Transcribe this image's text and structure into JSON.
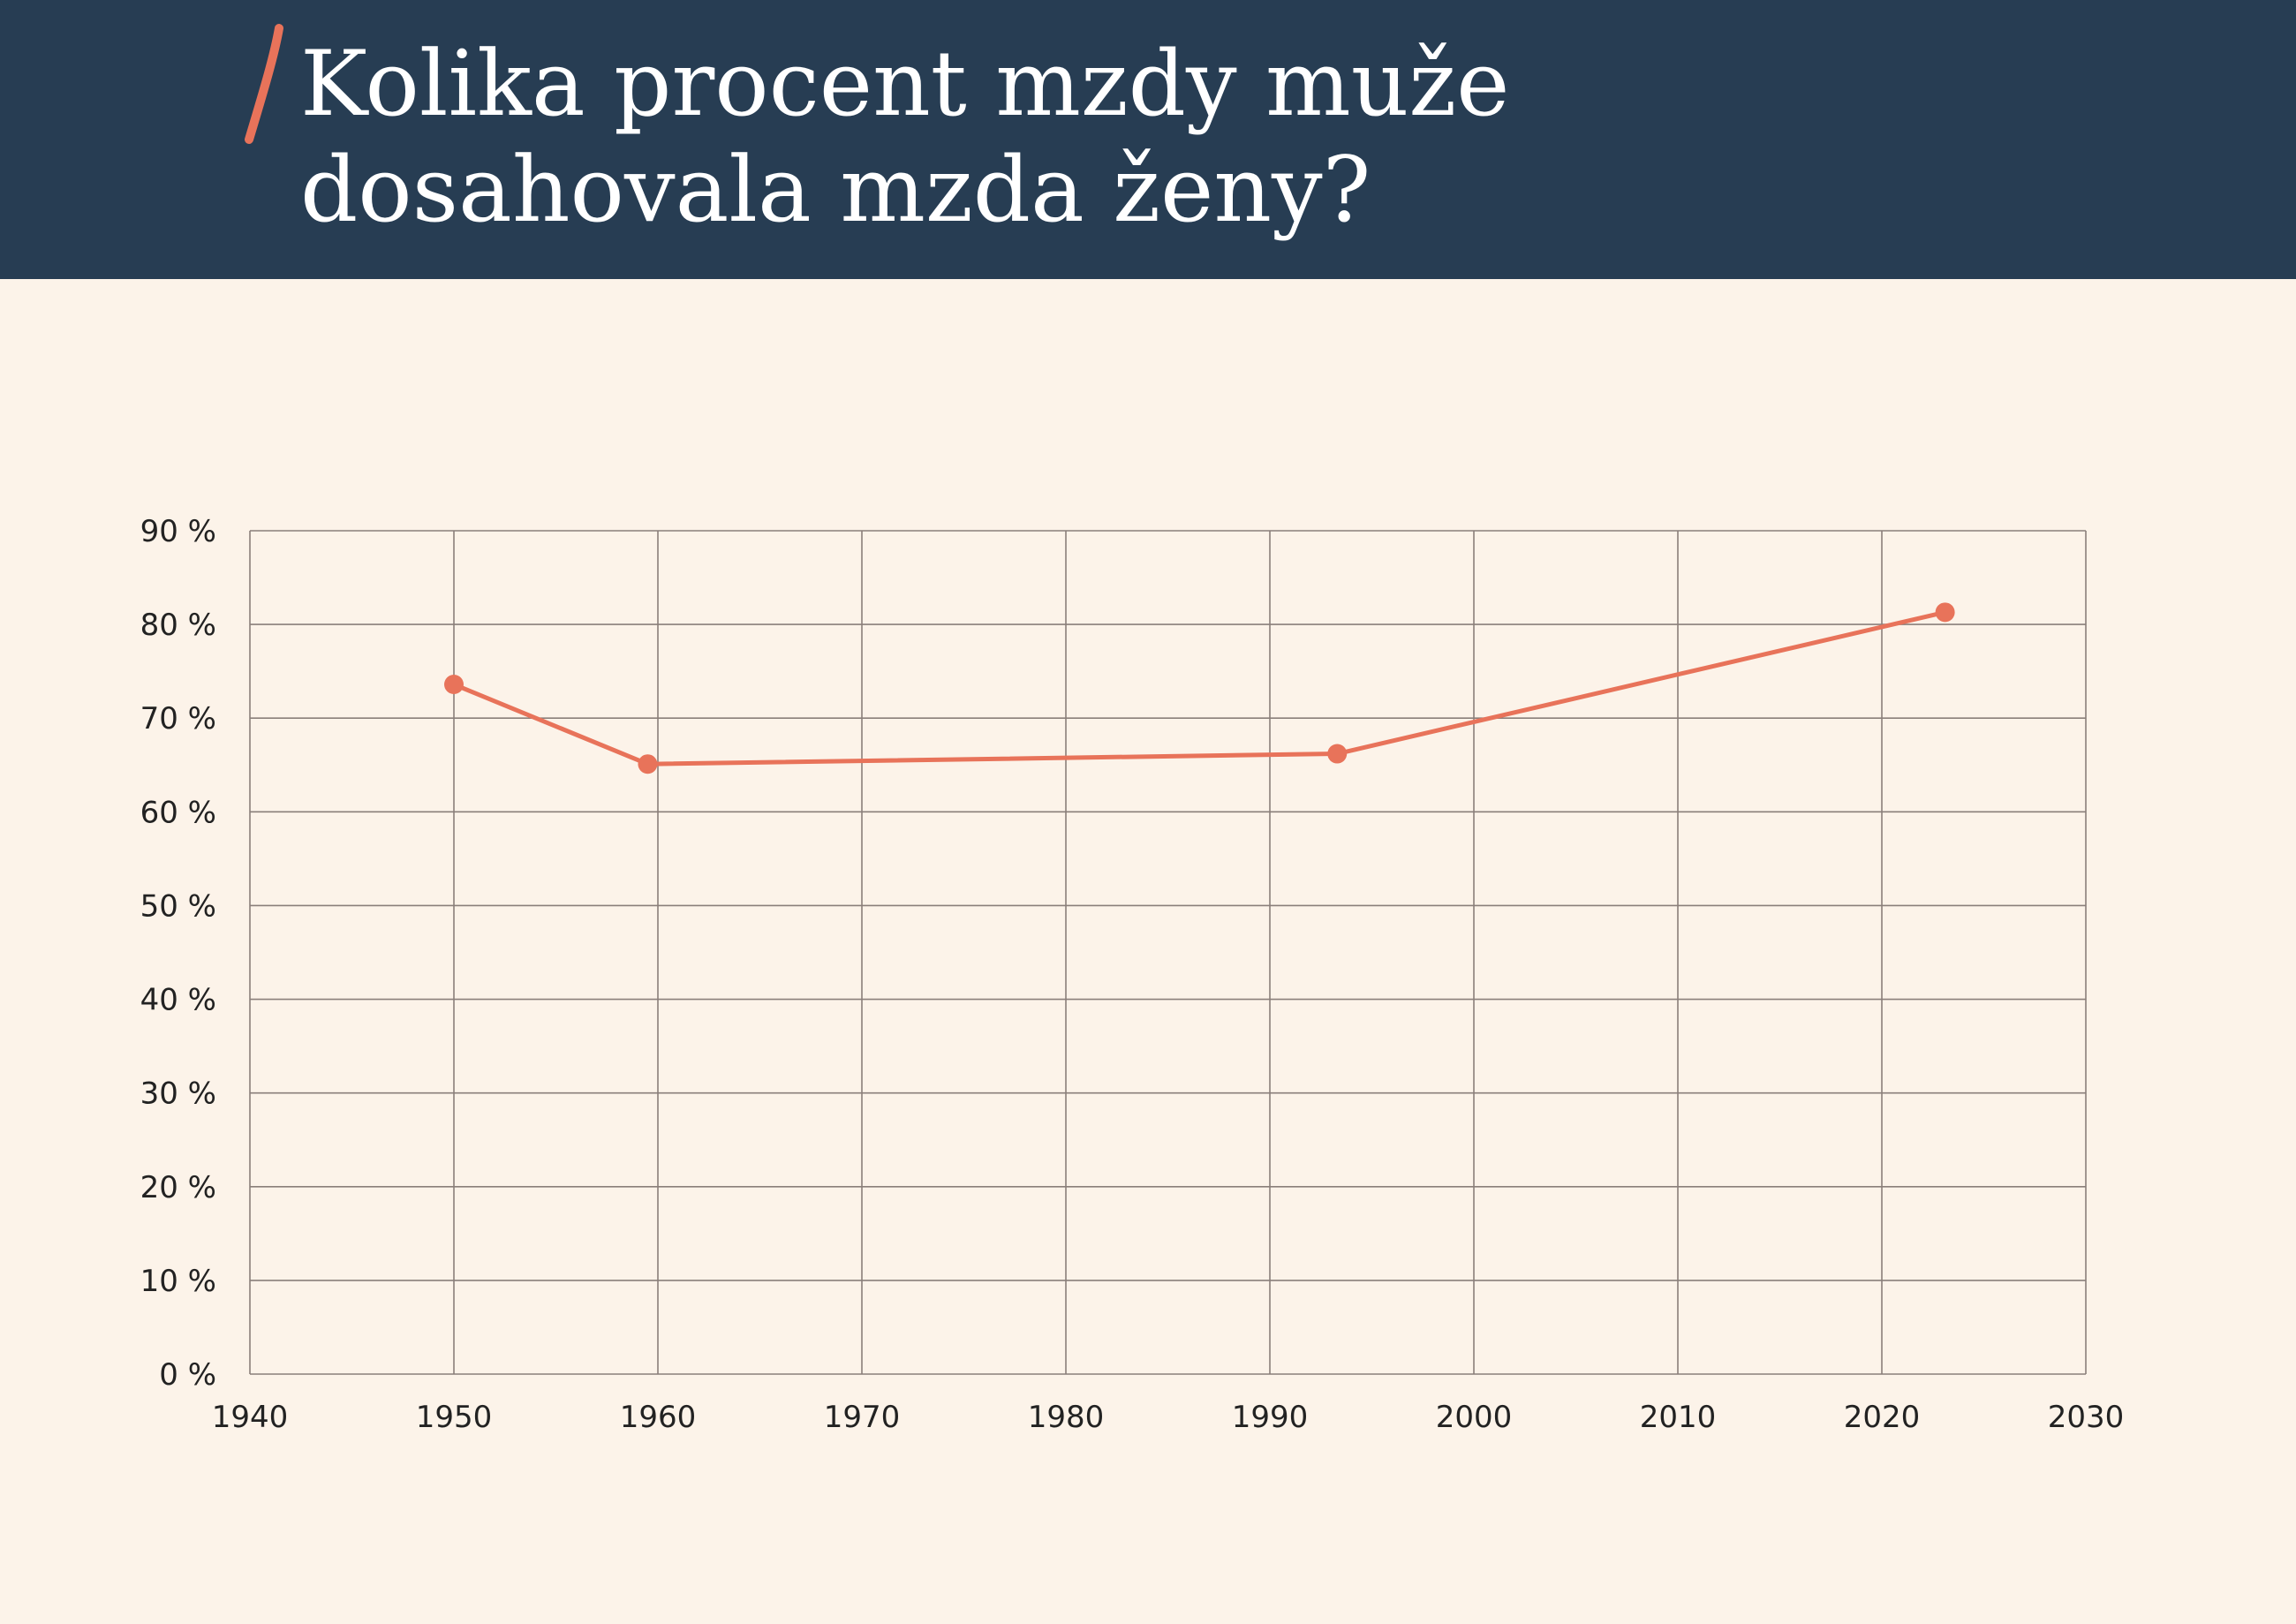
{
  "header": {
    "title": "Kolika procent mzdy muže dosahovala mzda ženy?"
  },
  "colors": {
    "header_bg": "#273d53",
    "page_bg": "#fcf3e9",
    "accent": "#e8735a",
    "grid": "#8a7f7a"
  },
  "chart_data": {
    "type": "line",
    "title": "Kolika procent mzdy muže dosahovala mzda ženy?",
    "xlabel": "",
    "ylabel": "",
    "xlim": [
      1940,
      2030
    ],
    "ylim": [
      0,
      90
    ],
    "x_ticks": [
      "1940",
      "1950",
      "1960",
      "1970",
      "1980",
      "1990",
      "2000",
      "2010",
      "2020",
      "2030"
    ],
    "y_ticks": [
      "0 %",
      "10 %",
      "20 %",
      "30 %",
      "40 %",
      "50 %",
      "60 %",
      "70 %",
      "80 %",
      "90 %"
    ],
    "grid": true,
    "legend": "none",
    "series": [
      {
        "x": [
          1950,
          1959.5,
          1993.3,
          2023.1
        ],
        "y": [
          73.6,
          65.1,
          66.2,
          81.3
        ]
      }
    ]
  }
}
